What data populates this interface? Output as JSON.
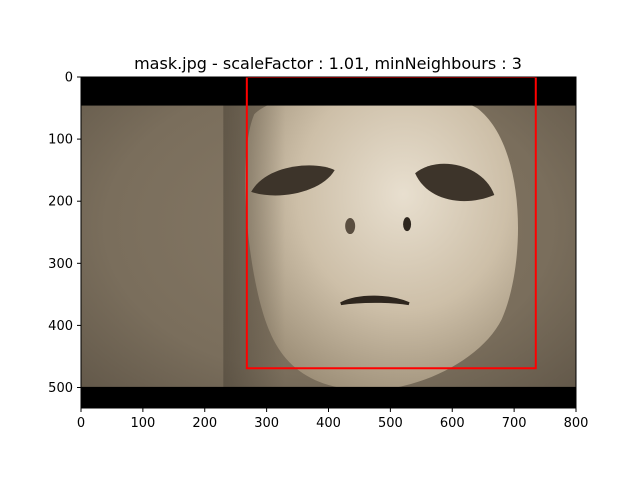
{
  "chart_data": {
    "type": "image",
    "title": "mask.jpg - scaleFactor : 1.01, minNeighbours : 3",
    "xlabel": "",
    "ylabel": "",
    "xlim": [
      0,
      800
    ],
    "ylim": [
      533,
      0
    ],
    "x_ticks": [
      0,
      100,
      200,
      300,
      400,
      500,
      600,
      700,
      800
    ],
    "y_ticks": [
      0,
      100,
      200,
      300,
      400,
      500
    ],
    "image_extent": {
      "width": 800,
      "height": 533
    },
    "letterbox_bars": [
      {
        "y_from": 0,
        "y_to": 46
      },
      {
        "y_from": 499,
        "y_to": 533
      }
    ],
    "detections": [
      {
        "x": 268,
        "y": 0,
        "width": 467,
        "height": 469,
        "color": "#ff0000"
      }
    ],
    "image_content": "mask-face-photo",
    "grid": false,
    "colors": {
      "bars": "#000000",
      "box": "#ff0000",
      "tone": "#8a7e6c"
    }
  }
}
